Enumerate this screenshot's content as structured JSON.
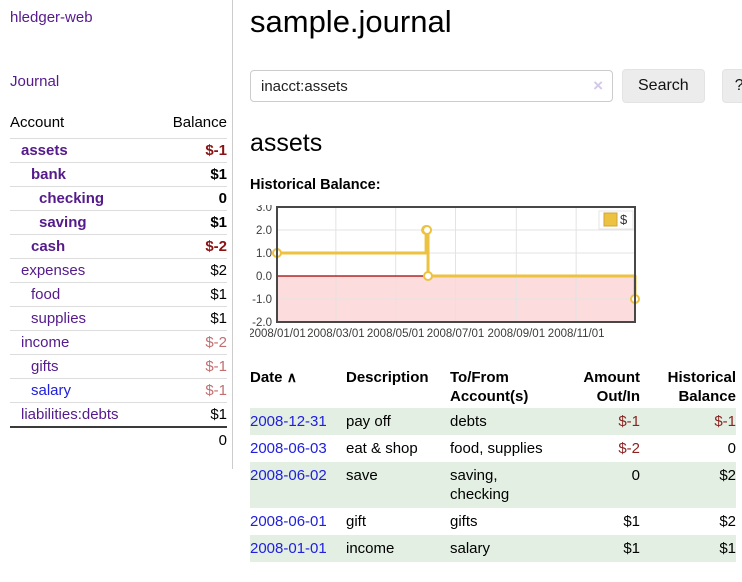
{
  "app": {
    "title": "hledger-web"
  },
  "sidebar": {
    "journal_link": "Journal",
    "accounts_table": {
      "account_header": "Account",
      "balance_header": "Balance",
      "rows": [
        {
          "account": "assets",
          "balance": "$-1"
        },
        {
          "account": "bank",
          "balance": "$1"
        },
        {
          "account": "checking",
          "balance": "0"
        },
        {
          "account": "saving",
          "balance": "$1"
        },
        {
          "account": "cash",
          "balance": "$-2"
        },
        {
          "account": "expenses",
          "balance": "$2"
        },
        {
          "account": "food",
          "balance": "$1"
        },
        {
          "account": "supplies",
          "balance": "$1"
        },
        {
          "account": "income",
          "balance": "$-2"
        },
        {
          "account": "gifts",
          "balance": "$-1"
        },
        {
          "account": "salary",
          "balance": "$-1"
        },
        {
          "account": "liabilities:debts",
          "balance": "$1"
        }
      ],
      "total": "0"
    }
  },
  "main": {
    "title": "sample.journal",
    "search": {
      "value": "inacct:assets",
      "clear_icon": "×",
      "search_button": "Search",
      "help_button": "?"
    },
    "account_heading": "assets",
    "chart_title": "Historical Balance:"
  },
  "chart_data": {
    "type": "line",
    "step": true,
    "title": "Historical Balance:",
    "series": [
      {
        "name": "$",
        "color": "#edc240",
        "marker_fill": "#ffffff",
        "points": [
          {
            "date": "2008-01-01",
            "value": 1
          },
          {
            "date": "2008-06-01",
            "value": 2
          },
          {
            "date": "2008-06-02",
            "value": 2
          },
          {
            "date": "2008-06-03",
            "value": 0
          },
          {
            "date": "2008-12-31",
            "value": -1
          }
        ]
      }
    ],
    "ylim": [
      -2,
      3
    ],
    "yticks": [
      3.0,
      2.0,
      1.0,
      0.0,
      -1.0,
      -2.0
    ],
    "xticks": [
      "2008/01/01",
      "2008/03/01",
      "2008/05/01",
      "2008/07/01",
      "2008/09/01",
      "2008/11/01"
    ],
    "x_range": [
      "2008-01-01",
      "2008-12-31"
    ],
    "grid": true,
    "grid_color": "#e3e3e3",
    "border_color": "#474747",
    "negative_region_color": "#fcdcdc",
    "zero_line_color": "#a40000",
    "legend": {
      "label": "$",
      "position": "top-right"
    }
  },
  "register": {
    "headers": {
      "date": "Date",
      "description": "Description",
      "accounts": "To/From Account(s)",
      "amount": "Amount Out/In",
      "balance": "Historical Balance"
    },
    "sort_indicator": "∧",
    "rows": [
      {
        "date": "2008-12-31",
        "description": "pay off",
        "accounts": "debts",
        "amount": "$-1",
        "balance": "$-1"
      },
      {
        "date": "2008-06-03",
        "description": "eat & shop",
        "accounts": "food, supplies",
        "amount": "$-2",
        "balance": "0"
      },
      {
        "date": "2008-06-02",
        "description": "save",
        "accounts": "saving,\nchecking",
        "amount": "0",
        "balance": "$2"
      },
      {
        "date": "2008-06-01",
        "description": "gift",
        "accounts": "gifts",
        "amount": "$1",
        "balance": "$2"
      },
      {
        "date": "2008-01-01",
        "description": "income",
        "accounts": "salary",
        "amount": "$1",
        "balance": "$1"
      }
    ]
  }
}
